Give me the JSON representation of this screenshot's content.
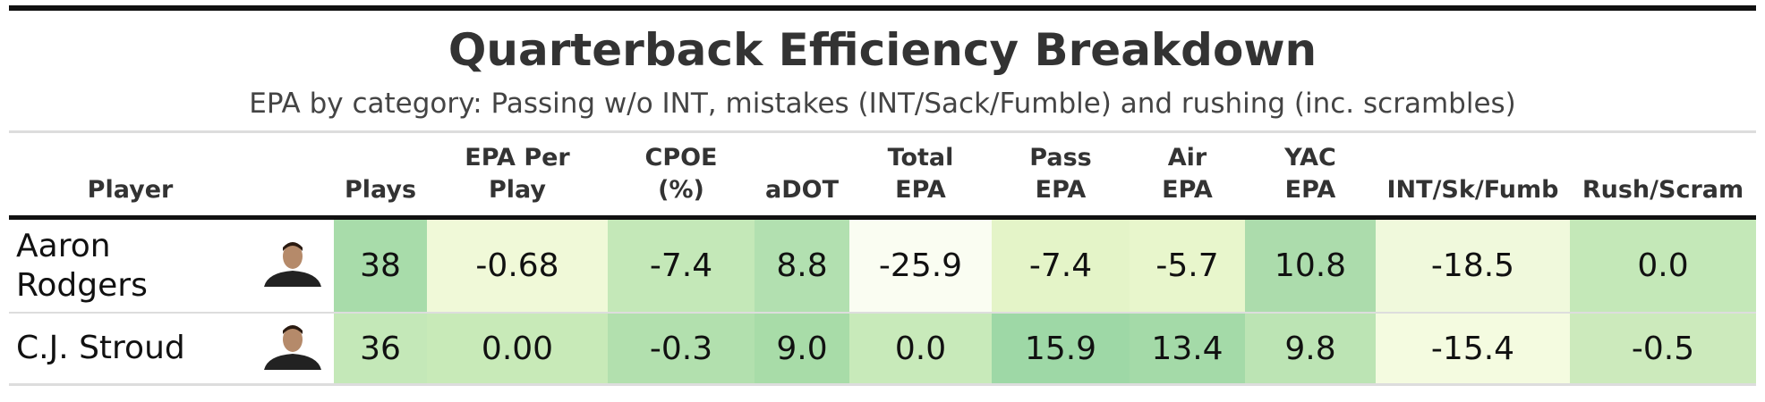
{
  "header": {
    "title": "Quarterback Efficiency Breakdown",
    "subtitle": "EPA by category: Passing w/o INT, mistakes (INT/Sack/Fumble) and rushing (inc. scrambles)"
  },
  "table": {
    "columns": [
      [
        "Player"
      ],
      [
        "Plays"
      ],
      [
        "EPA Per",
        "Play"
      ],
      [
        "CPOE",
        "(%)"
      ],
      [
        "aDOT"
      ],
      [
        "Total",
        "EPA"
      ],
      [
        "Pass",
        "EPA"
      ],
      [
        "Air",
        "EPA"
      ],
      [
        "YAC",
        "EPA"
      ],
      [
        "INT/Sk/Fumb"
      ],
      [
        "Rush/Scram"
      ]
    ],
    "rows": [
      {
        "player": [
          "Aaron",
          "Rodgers"
        ],
        "cells": [
          "38",
          "-0.68",
          "-7.4",
          "8.8",
          "-25.9",
          "-7.4",
          "-5.7",
          "10.8",
          "-18.5",
          "0.0"
        ],
        "colors": [
          "#a8dcaa",
          "#f0f9d8",
          "#c4e8b8",
          "#b2e0b0",
          "#fafdf2",
          "#e4f4c8",
          "#e8f6cc",
          "#acdcac",
          "#f0f9dc",
          "#c4e8b8"
        ]
      },
      {
        "player": [
          "C.J. Stroud"
        ],
        "cells": [
          "36",
          "0.00",
          "-0.3",
          "9.0",
          "0.0",
          "15.9",
          "13.4",
          "9.8",
          "-15.4",
          "-0.5"
        ],
        "colors": [
          "#c4e8b8",
          "#c8eab8",
          "#b2e0ae",
          "#a8dca8",
          "#c8eaba",
          "#9ed8a6",
          "#a4daa8",
          "#bce4b4",
          "#f4fbe0",
          "#cceabc"
        ]
      }
    ]
  }
}
